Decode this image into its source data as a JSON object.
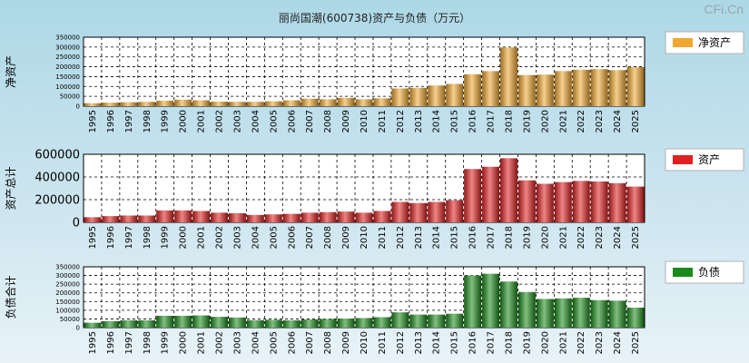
{
  "title": "丽尚国潮(600738)资产与负债（万元）",
  "watermark": "CFi.Cn",
  "colors": {
    "net_assets": "#f0a830",
    "assets": "#e02020",
    "liabilities": "#1a8a1a"
  },
  "chart_data": [
    {
      "type": "bar",
      "ylabel": "净资产",
      "legend": "净资产",
      "legend_position": "right",
      "grid": true,
      "series_key": "net_assets",
      "categories": [
        "1995",
        "1996",
        "1997",
        "1998",
        "1999",
        "2000",
        "2001",
        "2002",
        "2003",
        "2004",
        "2005",
        "2006",
        "2007",
        "2008",
        "2009",
        "2010",
        "2011",
        "2012",
        "2013",
        "2014",
        "2015",
        "2016",
        "2017",
        "2018",
        "2019",
        "2020",
        "2021",
        "2022",
        "2023",
        "2024",
        "2025"
      ],
      "values": [
        15000,
        18000,
        20000,
        22000,
        28000,
        33000,
        30000,
        23000,
        22000,
        22000,
        25000,
        30000,
        38000,
        35000,
        42000,
        35000,
        40000,
        90000,
        93000,
        105000,
        113000,
        162000,
        178000,
        298000,
        158000,
        160000,
        178000,
        185000,
        188000,
        183000,
        198000
      ],
      "yticks": [
        0,
        50000,
        100000,
        150000,
        200000,
        250000,
        300000,
        350000
      ],
      "ylim": [
        0,
        350000
      ]
    },
    {
      "type": "bar",
      "ylabel": "资产总计",
      "legend": "资产",
      "legend_position": "right",
      "grid": true,
      "series_key": "assets",
      "categories": [
        "1995",
        "1996",
        "1997",
        "1998",
        "1999",
        "2000",
        "2001",
        "2002",
        "2003",
        "2004",
        "2005",
        "2006",
        "2007",
        "2008",
        "2009",
        "2010",
        "2011",
        "2012",
        "2013",
        "2014",
        "2015",
        "2016",
        "2017",
        "2018",
        "2019",
        "2020",
        "2021",
        "2022",
        "2023",
        "2024",
        "2025"
      ],
      "values": [
        45000,
        55000,
        60000,
        60000,
        105000,
        105000,
        100000,
        85000,
        80000,
        65000,
        70000,
        75000,
        85000,
        90000,
        95000,
        85000,
        100000,
        180000,
        170000,
        180000,
        195000,
        470000,
        490000,
        565000,
        370000,
        340000,
        355000,
        365000,
        360000,
        345000,
        315000
      ],
      "yticks": [
        0,
        200000,
        400000,
        600000
      ],
      "ylim": [
        0,
        600000
      ]
    },
    {
      "type": "bar",
      "ylabel": "负债合计",
      "legend": "负债",
      "legend_position": "right",
      "grid": true,
      "series_key": "liabilities",
      "categories": [
        "1995",
        "1996",
        "1997",
        "1998",
        "1999",
        "2000",
        "2001",
        "2002",
        "2003",
        "2004",
        "2005",
        "2006",
        "2007",
        "2008",
        "2009",
        "2010",
        "2011",
        "2012",
        "2013",
        "2014",
        "2015",
        "2016",
        "2017",
        "2018",
        "2019",
        "2020",
        "2021",
        "2022",
        "2023",
        "2024",
        "2025"
      ],
      "values": [
        28000,
        37000,
        42000,
        42000,
        68000,
        68000,
        70000,
        62000,
        58000,
        43000,
        45000,
        42000,
        47000,
        50000,
        52000,
        55000,
        60000,
        88000,
        75000,
        75000,
        80000,
        300000,
        310000,
        265000,
        205000,
        165000,
        168000,
        172000,
        158000,
        155000,
        115000
      ],
      "yticks": [
        0,
        50000,
        100000,
        150000,
        200000,
        250000,
        300000,
        350000
      ],
      "ylim": [
        0,
        350000
      ]
    }
  ]
}
